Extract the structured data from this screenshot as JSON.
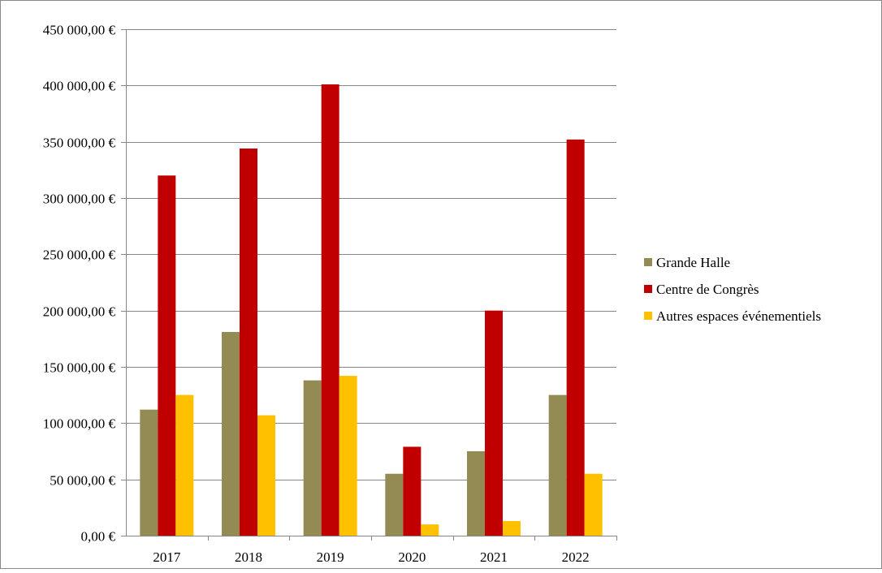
{
  "chart_data": {
    "type": "bar",
    "title": "",
    "xlabel": "",
    "ylabel": "",
    "categories": [
      "2017",
      "2018",
      "2019",
      "2020",
      "2021",
      "2022"
    ],
    "series": [
      {
        "name": "Grande Halle",
        "color": "#948A54",
        "values": [
          112000,
          181000,
          138000,
          55000,
          75000,
          125000
        ]
      },
      {
        "name": "Centre de Congrès",
        "color": "#C00000",
        "values": [
          320000,
          344000,
          401000,
          79000,
          200000,
          352000
        ]
      },
      {
        "name": "Autres espaces événementiels",
        "color": "#FFC000",
        "values": [
          125000,
          107000,
          142000,
          10000,
          13000,
          55000
        ]
      }
    ],
    "ylim": [
      0,
      450000
    ],
    "yticks": [
      0,
      50000,
      100000,
      150000,
      200000,
      250000,
      300000,
      350000,
      400000,
      450000
    ],
    "ytick_labels": [
      "0,00 €",
      "50 000,00 €",
      "100 000,00 €",
      "150 000,00 €",
      "200 000,00 €",
      "250 000,00 €",
      "300 000,00 €",
      "350 000,00 €",
      "400 000,00 €",
      "450 000,00 €"
    ],
    "grid": true,
    "legend_position": "right"
  }
}
